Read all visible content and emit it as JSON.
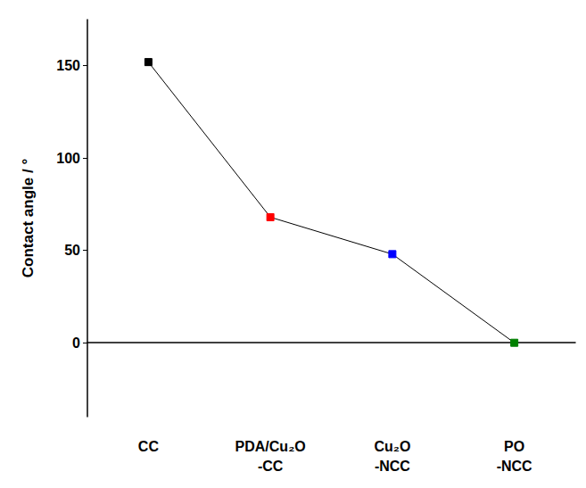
{
  "chart_data": {
    "type": "line",
    "y_label": "Contact angle / °",
    "categories": [
      "CC",
      "PDA/Cu₂O-CC",
      "Cu₂O-NCC",
      "PO-NCC"
    ],
    "values": [
      152,
      68,
      48,
      0
    ],
    "color": "#000000",
    "colors": [
      "#000000",
      "#ff0000",
      "#0000ff",
      "#008000"
    ],
    "marker": "square",
    "line_style": "solid",
    "ylim": [
      -40,
      175
    ],
    "yticks": [
      0,
      50,
      100,
      150
    ],
    "grid": false
  }
}
